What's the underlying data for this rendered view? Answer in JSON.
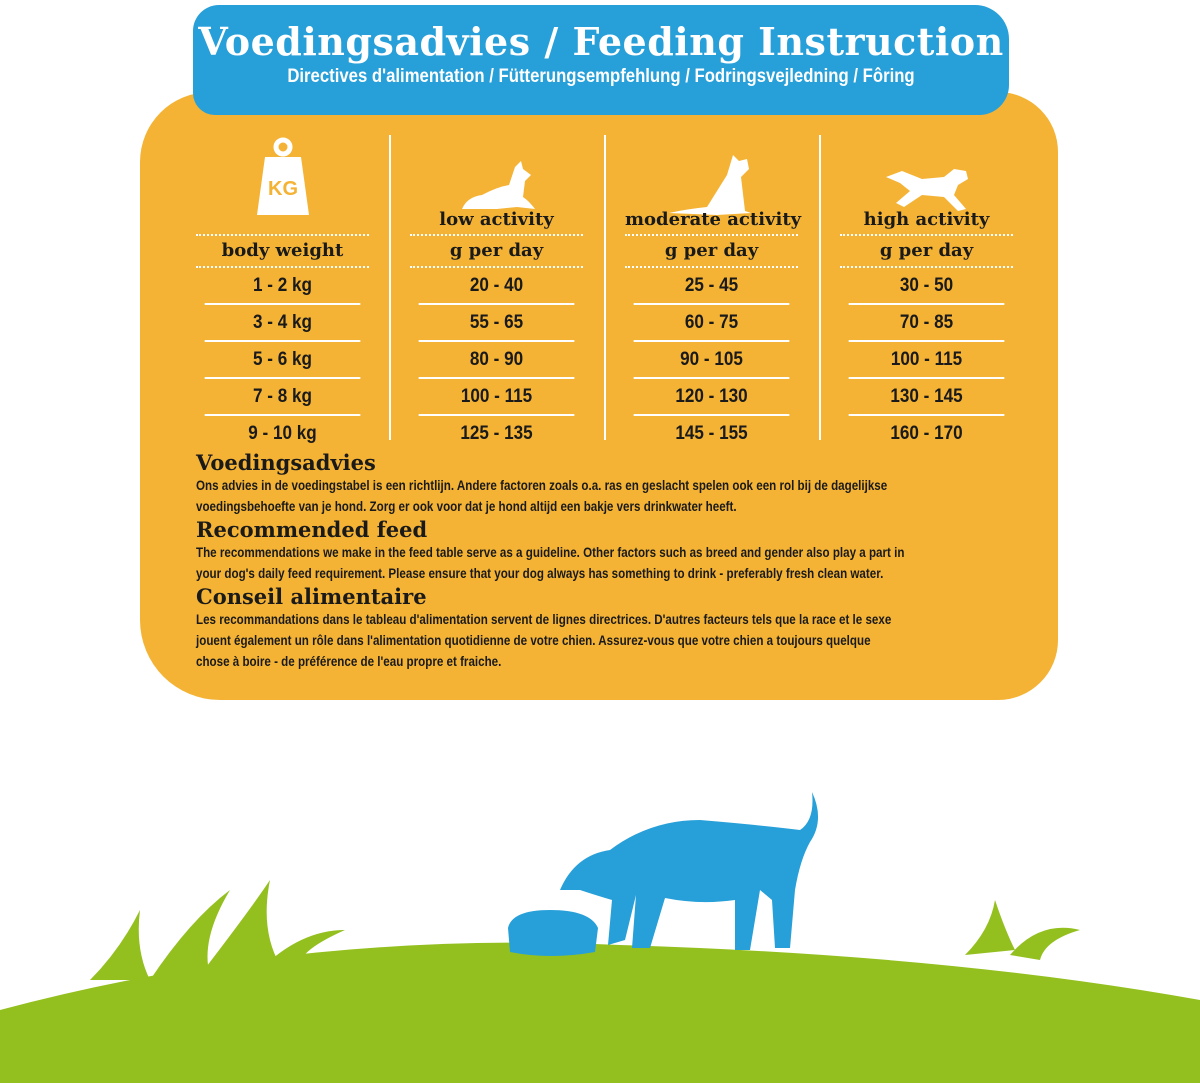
{
  "header": {
    "title": "Voedingsadvies / Feeding Instruction",
    "subtitle": "Directives d'alimentation / Fütterungsempfehlung / Fodringsvejledning / Fôring"
  },
  "colors": {
    "banner": "#279fd9",
    "panel": "#f4b335",
    "grass": "#93c01f",
    "dog": "#279fd9"
  },
  "table": {
    "columns": [
      {
        "icon": "weight-kg-icon",
        "icon_text": "KG",
        "label": "",
        "unit": "body weight",
        "values": [
          "1 - 2 kg",
          "3 - 4 kg",
          "5 - 6 kg",
          "7 - 8 kg",
          "9 - 10 kg"
        ]
      },
      {
        "icon": "dog-lying-icon",
        "label": "low activity",
        "unit": "g per day",
        "values": [
          "20 - 40",
          "55 - 65",
          "80 - 90",
          "100 - 115",
          "125 - 135"
        ]
      },
      {
        "icon": "dog-sitting-icon",
        "label": "moderate activity",
        "unit": "g per day",
        "values": [
          "25 - 45",
          "60 - 75",
          "90 - 105",
          "120 - 130",
          "145 - 155"
        ]
      },
      {
        "icon": "dog-running-icon",
        "label": "high activity",
        "unit": "g per day",
        "values": [
          "30 - 50",
          "70 - 85",
          "100 - 115",
          "130 - 145",
          "160 - 170"
        ]
      }
    ]
  },
  "notes": [
    {
      "title": "Voedingsadvies",
      "lines": [
        "Ons advies in de voedingstabel is een richtlijn. Andere factoren zoals o.a. ras en geslacht spelen ook een rol bij de dagelijkse",
        "voedingsbehoefte van je hond. Zorg er ook voor dat je hond altijd een bakje vers drinkwater heeft."
      ]
    },
    {
      "title": "Recommended feed",
      "lines": [
        "The recommendations we make in the feed table serve as a guideline. Other factors such as breed and gender also play a part in",
        "your dog's daily feed requirement. Please ensure that your dog always has something to drink - preferably fresh clean water."
      ]
    },
    {
      "title": "Conseil alimentaire",
      "lines": [
        "Les recommandations dans le tableau d'alimentation servent de lignes directrices. D'autres facteurs tels que la race et le sexe",
        "jouent également un rôle dans l'alimentation quotidienne de votre chien. Assurez-vous que votre chien a toujours quelque",
        "chose à boire - de préférence de l'eau propre et fraiche."
      ]
    }
  ]
}
